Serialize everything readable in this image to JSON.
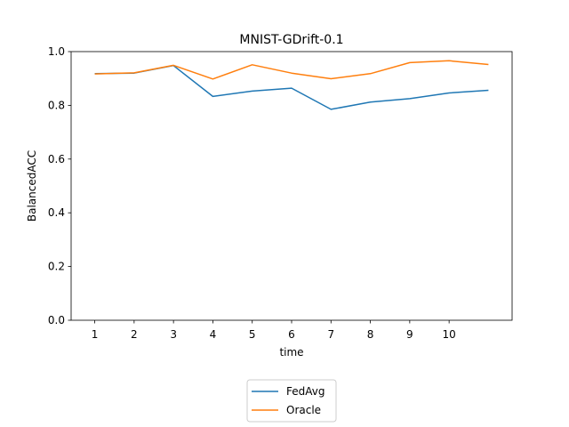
{
  "chart_data": {
    "type": "line",
    "title": "MNIST-GDrift-0.1",
    "xlabel": "time",
    "ylabel": "BalancedACC",
    "x": [
      1,
      2,
      3,
      4,
      5,
      6,
      7,
      8,
      9,
      10,
      11
    ],
    "x_tick_labels": [
      "1",
      "2",
      "3",
      "4",
      "5",
      "6",
      "7",
      "8",
      "9",
      "10"
    ],
    "xlim": [
      0.4,
      11.6
    ],
    "ylim": [
      0.0,
      1.0
    ],
    "y_ticks": [
      "0.0",
      "0.2",
      "0.4",
      "0.6",
      "0.8",
      "1.0"
    ],
    "grid": false,
    "legend_position": "below-center",
    "series": [
      {
        "name": "FedAvg",
        "color": "#1f77b4",
        "values": [
          0.918,
          0.92,
          0.948,
          0.833,
          0.853,
          0.864,
          0.785,
          0.812,
          0.825,
          0.846,
          0.856
        ]
      },
      {
        "name": "Oracle",
        "color": "#ff7f0e",
        "values": [
          0.917,
          0.921,
          0.949,
          0.898,
          0.951,
          0.92,
          0.899,
          0.918,
          0.959,
          0.966,
          0.952
        ]
      }
    ]
  }
}
